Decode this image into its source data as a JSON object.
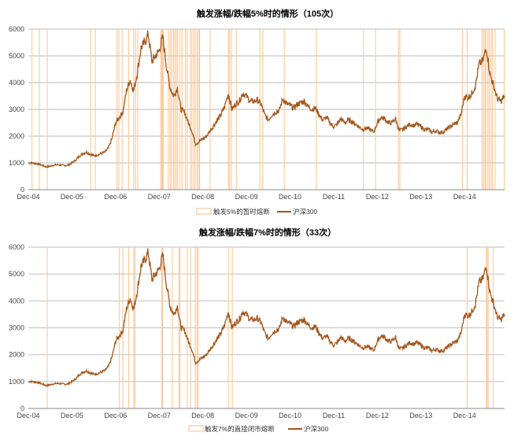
{
  "colors": {
    "line": "#a3561a",
    "band": "#fbc99a",
    "grid": "#c8c8c8"
  },
  "chart_data": [
    {
      "type": "line",
      "title": "触发涨幅/跌幅5%时的情形（105次）",
      "legend": [
        "触发5%的暂时熔断",
        "沪深300"
      ],
      "legend_placement": "bottom",
      "ylim": [
        0,
        6000
      ],
      "yticks": [
        "0",
        "1000",
        "2000",
        "3000",
        "4000",
        "5000",
        "6000"
      ],
      "xticks": [
        "Dec-04",
        "Dec-05",
        "Dec-06",
        "Dec-07",
        "Dec-08",
        "Dec-09",
        "Dec-10",
        "Dec-11",
        "Dec-12",
        "Dec-13",
        "Dec-14"
      ],
      "x_unit": "months since Dec-04",
      "xlim": [
        0,
        131
      ],
      "events_months": [
        1.0,
        3.0,
        5.2,
        17.2,
        18.4,
        24.4,
        24.9,
        25.8,
        27.6,
        29.0,
        29.5,
        30.1,
        36.4,
        36.7,
        36.9,
        37.1,
        38.5,
        39.0,
        39.4,
        39.9,
        40.3,
        40.7,
        41.1,
        41.7,
        42.3,
        43.2,
        43.7,
        44.6,
        45.0,
        45.5,
        45.9,
        46.4,
        46.8,
        47.1,
        50.0,
        55.1,
        55.4,
        55.9,
        57.2,
        63.7,
        64.5,
        70.4,
        79.2,
        92.2,
        95.5,
        101.8,
        102.2,
        119.4,
        120.7,
        124.8,
        125.2,
        125.6,
        125.9,
        126.4,
        126.8,
        127.3,
        127.7,
        128.4,
        130.9
      ]
    },
    {
      "type": "line",
      "title": "触发涨幅/跌幅7%时的情形（33次）",
      "legend": [
        "触发7%的直接闭市熔断",
        "沪深300"
      ],
      "legend_placement": "bottom",
      "ylim": [
        0,
        6000
      ],
      "yticks": [
        "0",
        "1000",
        "2000",
        "3000",
        "4000",
        "5000",
        "6000"
      ],
      "xticks": [
        "Dec-04",
        "Dec-05",
        "Dec-06",
        "Dec-07",
        "Dec-08",
        "Dec-09",
        "Dec-10",
        "Dec-11",
        "Dec-12",
        "Dec-13",
        "Dec-14"
      ],
      "x_unit": "months since Dec-04",
      "xlim": [
        0,
        131
      ],
      "events_months": [
        5.2,
        25.0,
        26.0,
        27.6,
        29.0,
        29.3,
        36.7,
        36.9,
        39.6,
        41.4,
        41.7,
        43.7,
        44.6,
        45.9,
        46.4,
        46.7,
        55.0,
        56.1,
        120.7,
        126.0,
        126.2,
        126.5,
        127.9
      ]
    }
  ],
  "series_csi300_monthly": [
    1000,
    1000,
    980,
    950,
    900,
    850,
    880,
    920,
    930,
    920,
    900,
    920,
    1000,
    1100,
    1250,
    1350,
    1400,
    1330,
    1270,
    1300,
    1350,
    1400,
    1550,
    1900,
    2500,
    2700,
    2900,
    3700,
    4100,
    3700,
    4400,
    5300,
    5500,
    5800,
    4800,
    5000,
    5200,
    5700,
    4600,
    3800,
    3500,
    3800,
    3000,
    2900,
    2500,
    2200,
    1700,
    1800,
    1900,
    2000,
    2200,
    2400,
    2600,
    2800,
    3100,
    3600,
    3000,
    3200,
    3300,
    3600,
    3500,
    3300,
    3300,
    3350,
    3200,
    2800,
    2600,
    2800,
    2900,
    2950,
    3400,
    3200,
    3150,
    3050,
    3200,
    3250,
    3300,
    3100,
    3000,
    3050,
    2800,
    2600,
    2700,
    2500,
    2350,
    2450,
    2650,
    2500,
    2600,
    2550,
    2450,
    2350,
    2250,
    2300,
    2250,
    2150,
    2500,
    2700,
    2650,
    2500,
    2500,
    2650,
    2200,
    2250,
    2350,
    2450,
    2400,
    2450,
    2350,
    2250,
    2250,
    2150,
    2200,
    2150,
    2150,
    2250,
    2350,
    2450,
    2500,
    2800,
    3500,
    3450,
    3600,
    3900,
    4700,
    4800,
    5300,
    4300,
    3900,
    3400,
    3300,
    3500,
    3700,
    3700
  ]
}
